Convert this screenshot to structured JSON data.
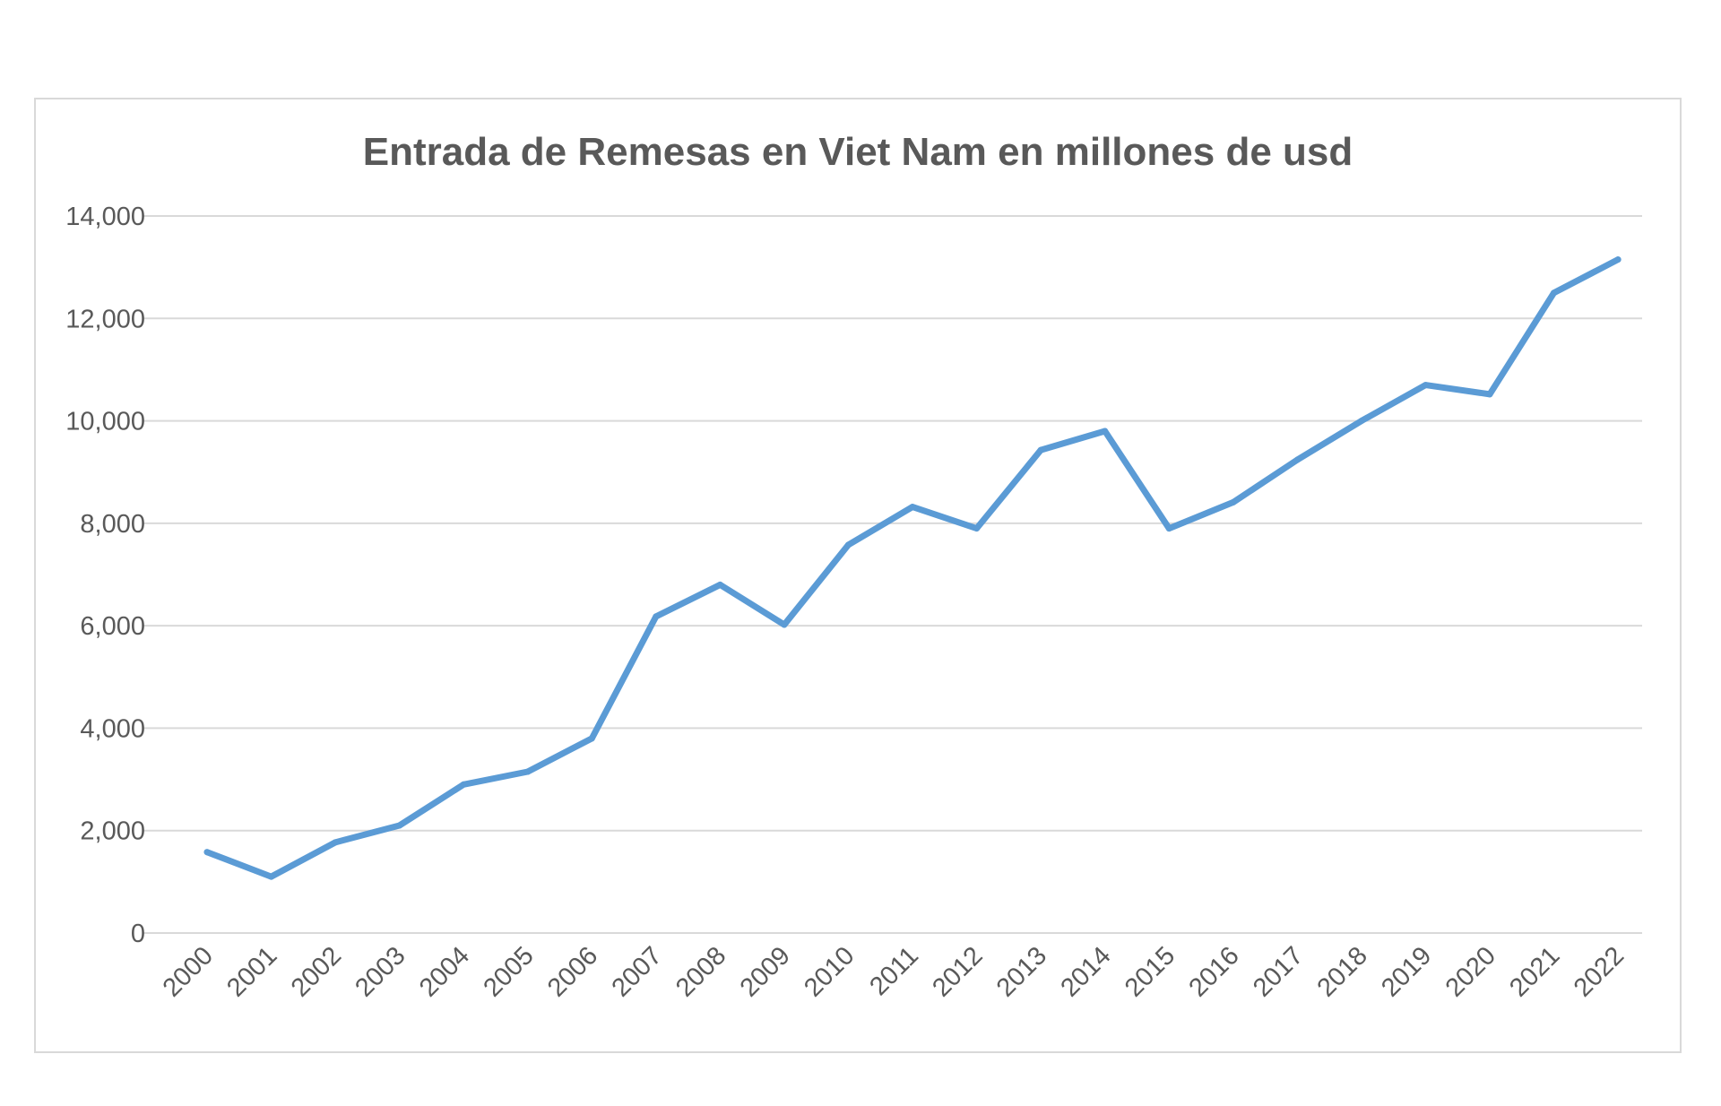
{
  "chart_data": {
    "type": "line",
    "title": "Entrada de Remesas en Viet Nam en millones de usd",
    "xlabel": "",
    "ylabel": "",
    "ylim": [
      0,
      14000
    ],
    "yticks": [
      "0",
      "2,000",
      "4,000",
      "6,000",
      "8,000",
      "10,000",
      "12,000",
      "14,000"
    ],
    "grid": true,
    "legend": "none",
    "x": [
      "2000",
      "2001",
      "2002",
      "2003",
      "2004",
      "2005",
      "2006",
      "2007",
      "2008",
      "2009",
      "2010",
      "2011",
      "2012",
      "2013",
      "2014",
      "2015",
      "2016",
      "2017",
      "2018",
      "2019",
      "2020",
      "2021",
      "2022"
    ],
    "series": [
      {
        "color": "#5b9bd5",
        "values": [
          1580,
          1100,
          1770,
          2100,
          2900,
          3150,
          3800,
          6180,
          6800,
          6020,
          7580,
          8320,
          7900,
          9430,
          9800,
          7900,
          8410,
          9240,
          10000,
          10700,
          10520,
          12500,
          13150
        ]
      }
    ]
  }
}
